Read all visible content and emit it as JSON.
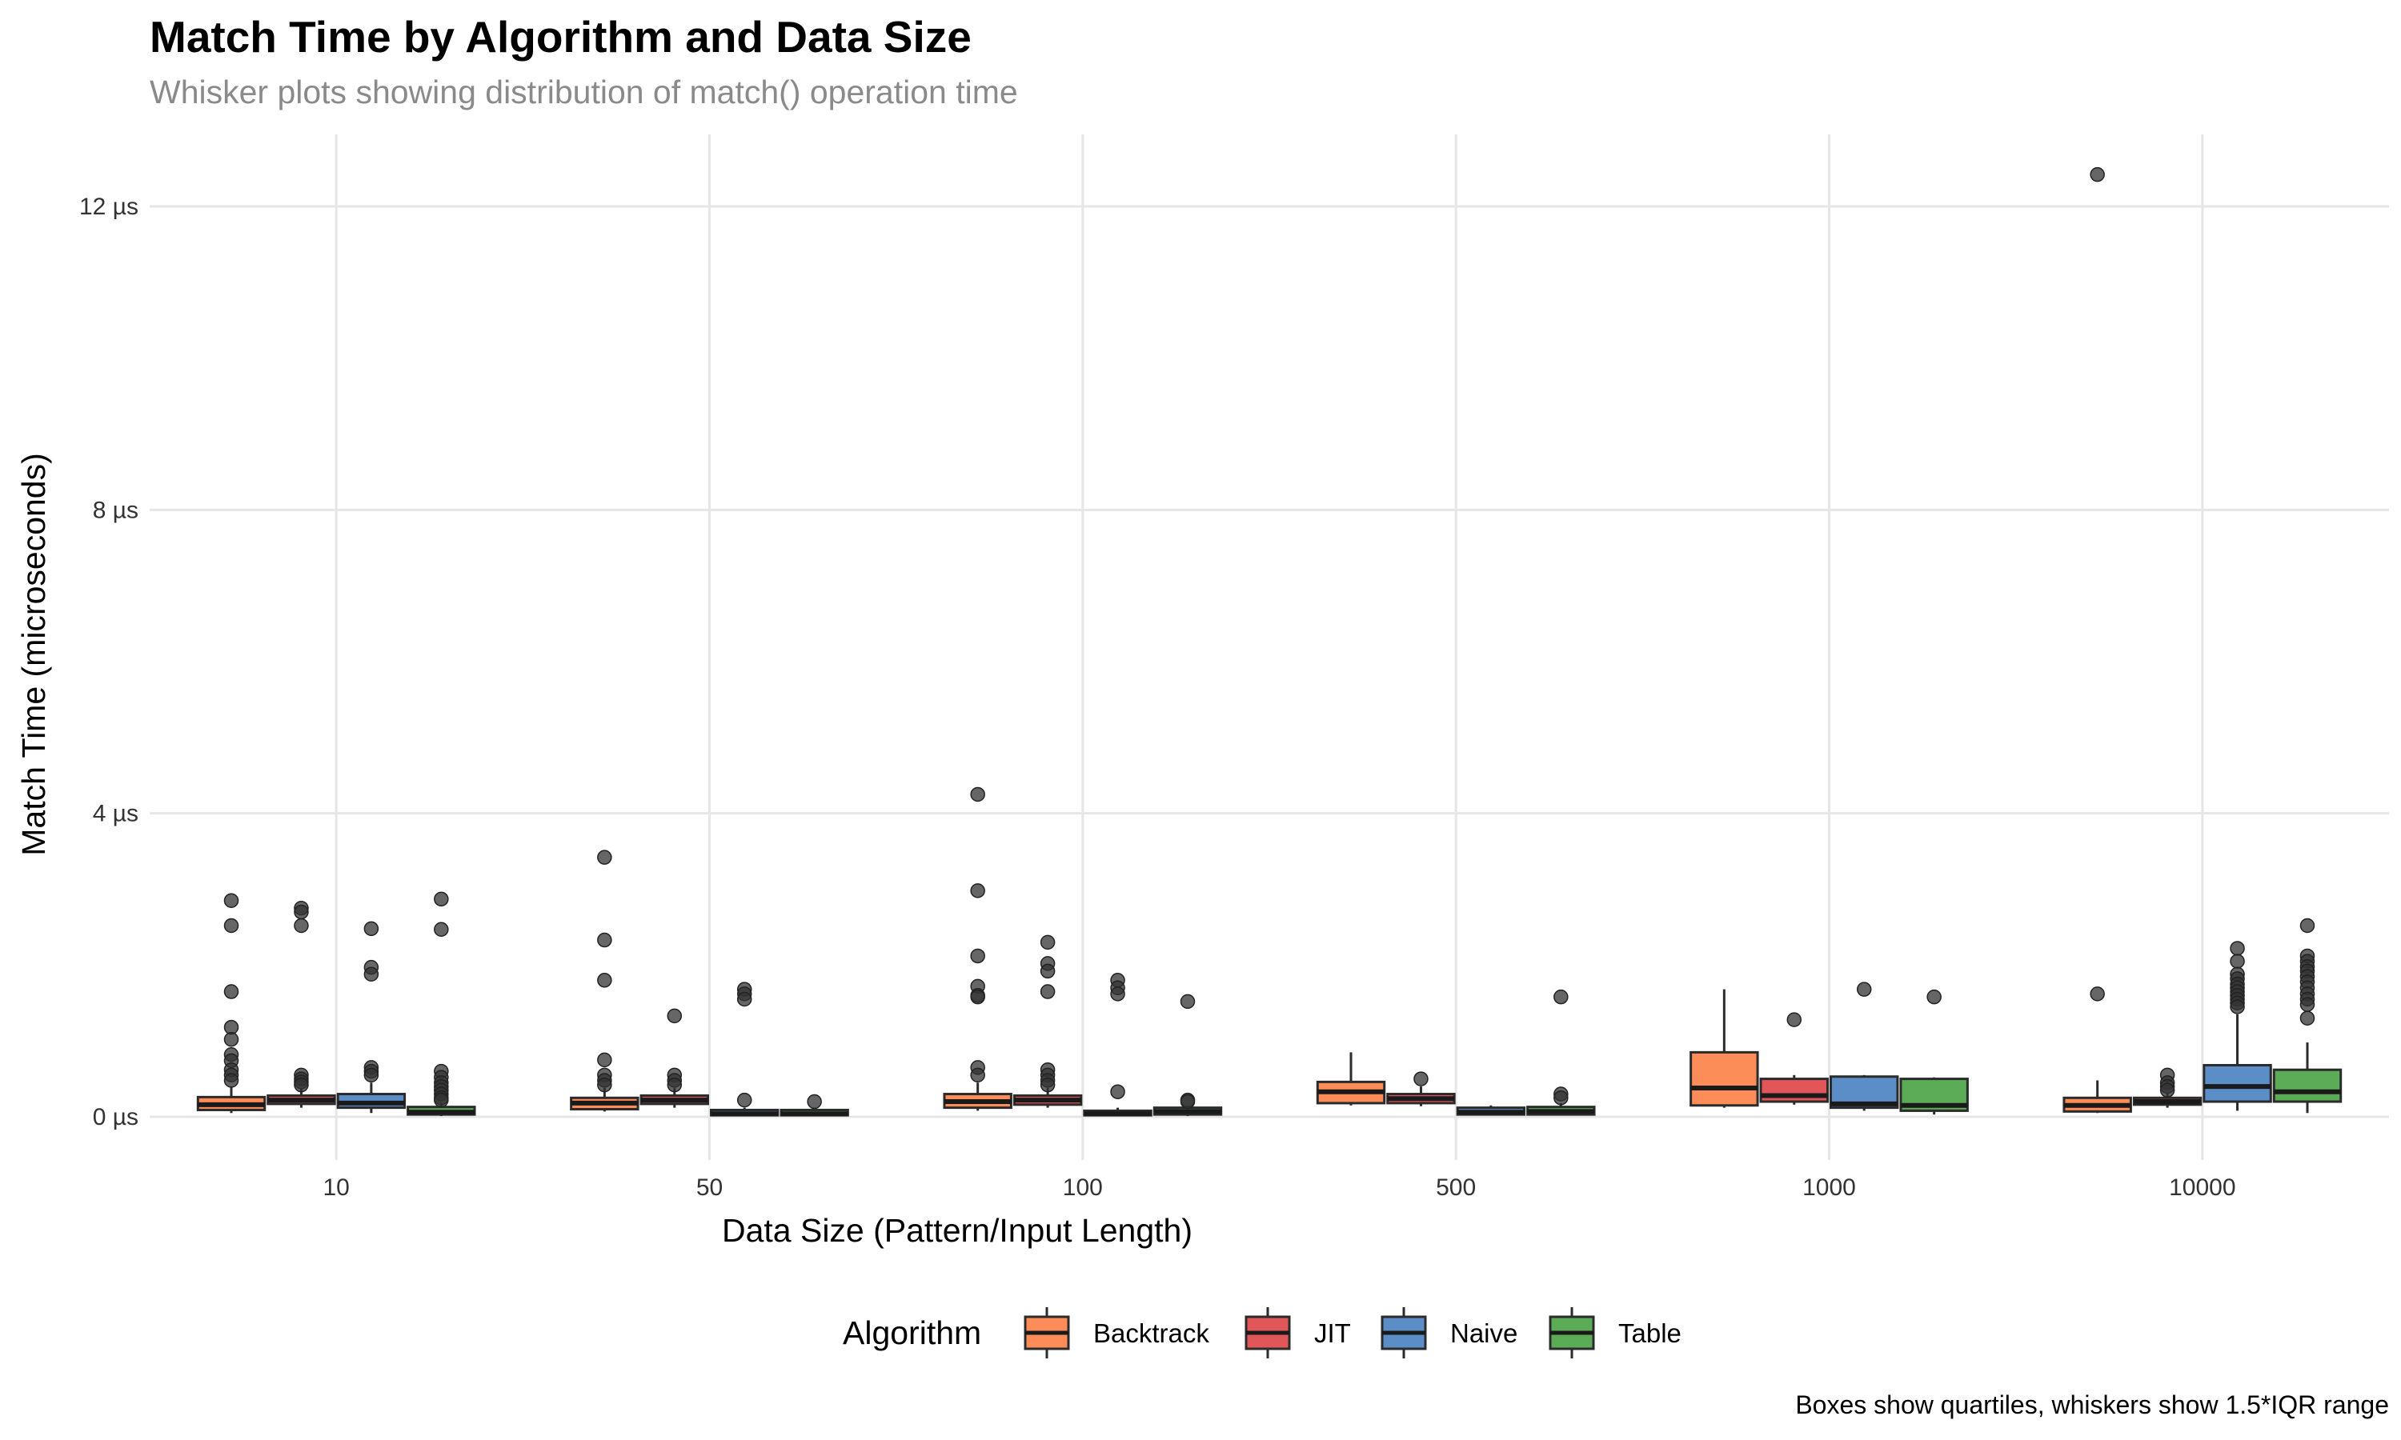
{
  "chart_data": {
    "type": "box",
    "title": "Match Time by Algorithm and Data Size",
    "subtitle": "Whisker plots showing distribution of match() operation time",
    "caption": "Boxes show quartiles, whiskers show 1.5*IQR range",
    "xlabel": "Data Size (Pattern/Input Length)",
    "ylabel": "Match Time (microseconds)",
    "y_unit_suffix": " µs",
    "ylim": [
      -0.6,
      12.9
    ],
    "yticks": [
      0,
      4,
      8,
      12
    ],
    "categories": [
      "10",
      "50",
      "100",
      "500",
      "1000",
      "10000"
    ],
    "grid": true,
    "legend": {
      "title": "Algorithm",
      "position": "bottom"
    },
    "series": [
      {
        "name": "Backtrack",
        "color": "#fc8d59",
        "boxes": [
          {
            "category": "10",
            "min": 0.05,
            "q1": 0.09,
            "median": 0.16,
            "q3": 0.26,
            "max": 0.4,
            "outliers": [
              2.85,
              2.52,
              1.65,
              1.18,
              1.02,
              0.82,
              0.74,
              0.62,
              0.55,
              0.48
            ]
          },
          {
            "category": "50",
            "min": 0.07,
            "q1": 0.1,
            "median": 0.18,
            "q3": 0.25,
            "max": 0.38,
            "outliers": [
              3.42,
              2.33,
              1.8,
              0.75,
              0.55,
              0.48,
              0.42
            ]
          },
          {
            "category": "100",
            "min": 0.08,
            "q1": 0.12,
            "median": 0.2,
            "q3": 0.3,
            "max": 0.45,
            "outliers": [
              4.25,
              2.98,
              2.12,
              1.72,
              1.6,
              1.58,
              0.65,
              0.55
            ]
          },
          {
            "category": "500",
            "min": 0.15,
            "q1": 0.18,
            "median": 0.33,
            "q3": 0.46,
            "max": 0.85,
            "outliers": []
          },
          {
            "category": "1000",
            "min": 0.12,
            "q1": 0.15,
            "median": 0.38,
            "q3": 0.85,
            "max": 1.68,
            "outliers": []
          },
          {
            "category": "10000",
            "min": 0.05,
            "q1": 0.07,
            "median": 0.15,
            "q3": 0.25,
            "max": 0.48,
            "outliers": [
              12.42,
              1.62
            ]
          }
        ]
      },
      {
        "name": "JIT",
        "color": "#e15759",
        "boxes": [
          {
            "category": "10",
            "min": 0.12,
            "q1": 0.17,
            "median": 0.22,
            "q3": 0.28,
            "max": 0.38,
            "outliers": [
              2.75,
              2.7,
              2.52,
              0.55,
              0.5,
              0.46,
              0.42
            ]
          },
          {
            "category": "50",
            "min": 0.12,
            "q1": 0.17,
            "median": 0.22,
            "q3": 0.28,
            "max": 0.38,
            "outliers": [
              1.33,
              0.55,
              0.48,
              0.42
            ]
          },
          {
            "category": "100",
            "min": 0.12,
            "q1": 0.16,
            "median": 0.22,
            "q3": 0.28,
            "max": 0.38,
            "outliers": [
              2.3,
              2.02,
              1.92,
              1.65,
              0.62,
              0.55,
              0.48,
              0.42
            ]
          },
          {
            "category": "500",
            "min": 0.14,
            "q1": 0.18,
            "median": 0.24,
            "q3": 0.3,
            "max": 0.4,
            "outliers": [
              0.5
            ]
          },
          {
            "category": "1000",
            "min": 0.16,
            "q1": 0.2,
            "median": 0.28,
            "q3": 0.5,
            "max": 0.55,
            "outliers": [
              1.28
            ]
          },
          {
            "category": "10000",
            "min": 0.12,
            "q1": 0.16,
            "median": 0.2,
            "q3": 0.25,
            "max": 0.32,
            "outliers": [
              0.55,
              0.45,
              0.4,
              0.35
            ]
          }
        ]
      },
      {
        "name": "Naive",
        "color": "#5b8ec7",
        "boxes": [
          {
            "category": "10",
            "min": 0.05,
            "q1": 0.12,
            "median": 0.18,
            "q3": 0.3,
            "max": 0.45,
            "outliers": [
              2.48,
              1.97,
              1.88,
              0.65,
              0.6,
              0.55
            ]
          },
          {
            "category": "50",
            "min": 0.01,
            "q1": 0.02,
            "median": 0.04,
            "q3": 0.09,
            "max": 0.12,
            "outliers": [
              1.68,
              1.62,
              1.55,
              0.22
            ]
          },
          {
            "category": "100",
            "min": 0.01,
            "q1": 0.02,
            "median": 0.04,
            "q3": 0.08,
            "max": 0.12,
            "outliers": [
              1.8,
              1.7,
              1.62,
              0.33
            ]
          },
          {
            "category": "500",
            "min": 0.02,
            "q1": 0.03,
            "median": 0.06,
            "q3": 0.12,
            "max": 0.15,
            "outliers": []
          },
          {
            "category": "1000",
            "min": 0.08,
            "q1": 0.12,
            "median": 0.17,
            "q3": 0.53,
            "max": 0.55,
            "outliers": [
              1.68
            ]
          },
          {
            "category": "10000",
            "min": 0.08,
            "q1": 0.2,
            "median": 0.4,
            "q3": 0.68,
            "max": 1.35,
            "outliers": [
              2.22,
              2.05,
              1.88,
              1.82,
              1.75,
              1.7,
              1.65,
              1.6,
              1.55,
              1.5,
              1.45
            ]
          }
        ]
      },
      {
        "name": "Table",
        "color": "#5bab57",
        "boxes": [
          {
            "category": "10",
            "min": 0.01,
            "q1": 0.03,
            "median": 0.06,
            "q3": 0.13,
            "max": 0.18,
            "outliers": [
              2.87,
              2.47,
              0.6,
              0.52,
              0.45,
              0.4,
              0.35,
              0.3,
              0.25,
              0.22
            ]
          },
          {
            "category": "50",
            "min": 0.01,
            "q1": 0.02,
            "median": 0.04,
            "q3": 0.09,
            "max": 0.12,
            "outliers": [
              0.2
            ]
          },
          {
            "category": "100",
            "min": 0.01,
            "q1": 0.03,
            "median": 0.07,
            "q3": 0.12,
            "max": 0.15,
            "outliers": [
              1.52,
              0.22,
              0.2
            ]
          },
          {
            "category": "500",
            "min": 0.02,
            "q1": 0.03,
            "median": 0.07,
            "q3": 0.13,
            "max": 0.18,
            "outliers": [
              1.58,
              0.3,
              0.25
            ]
          },
          {
            "category": "1000",
            "min": 0.03,
            "q1": 0.08,
            "median": 0.15,
            "q3": 0.5,
            "max": 0.52,
            "outliers": [
              1.58
            ]
          },
          {
            "category": "10000",
            "min": 0.05,
            "q1": 0.2,
            "median": 0.33,
            "q3": 0.62,
            "max": 0.98,
            "outliers": [
              2.52,
              2.12,
              2.05,
              1.98,
              1.92,
              1.85,
              1.78,
              1.7,
              1.62,
              1.55,
              1.48,
              1.3
            ]
          }
        ]
      }
    ]
  }
}
